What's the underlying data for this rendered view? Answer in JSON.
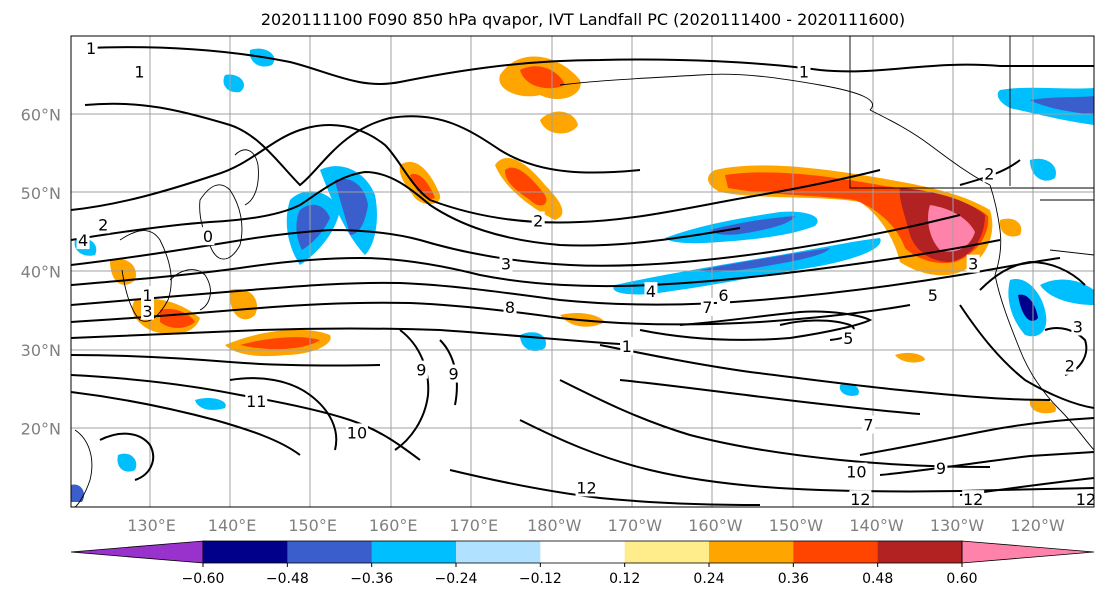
{
  "title": "2020111100 F090 850 hPa qvapor, IVT Landfall PC (2020111400 - 2020111600)",
  "map": {
    "lat_labels": [
      {
        "label": "60°N",
        "lat": 60
      },
      {
        "label": "50°N",
        "lat": 50
      },
      {
        "label": "40°N",
        "lat": 40
      },
      {
        "label": "30°N",
        "lat": 30
      },
      {
        "label": "20°N",
        "lat": 20
      }
    ],
    "lon_labels": [
      {
        "label": "130°E",
        "lon": 130
      },
      {
        "label": "140°E",
        "lon": 140
      },
      {
        "label": "150°E",
        "lon": 150
      },
      {
        "label": "160°E",
        "lon": 160
      },
      {
        "label": "170°E",
        "lon": 170
      },
      {
        "label": "180°W",
        "lon": 180
      },
      {
        "label": "170°W",
        "lon": 190
      },
      {
        "label": "160°W",
        "lon": 200
      },
      {
        "label": "150°W",
        "lon": 210
      },
      {
        "label": "140°W",
        "lon": 220
      },
      {
        "label": "130°W",
        "lon": 230
      },
      {
        "label": "120°W",
        "lon": 240
      }
    ],
    "lon_range": [
      120,
      247
    ],
    "lat_range": [
      10,
      70
    ],
    "grid_color": "#a0a0a0",
    "label_color": "#808080",
    "contour_labels": [
      {
        "text": "1",
        "lon": 122.5,
        "lat": 68.5
      },
      {
        "text": "1",
        "lon": 128.5,
        "lat": 65.5
      },
      {
        "text": "1",
        "lon": 211,
        "lat": 65.5
      },
      {
        "text": "2",
        "lon": 124,
        "lat": 46
      },
      {
        "text": "4",
        "lon": 121.5,
        "lat": 44
      },
      {
        "text": "0",
        "lon": 137,
        "lat": 44.5
      },
      {
        "text": "2",
        "lon": 178,
        "lat": 46.5
      },
      {
        "text": "3",
        "lon": 174,
        "lat": 41
      },
      {
        "text": "4",
        "lon": 192,
        "lat": 37.5
      },
      {
        "text": "8",
        "lon": 174.5,
        "lat": 35.5
      },
      {
        "text": "7",
        "lon": 199,
        "lat": 35.5
      },
      {
        "text": "6",
        "lon": 201,
        "lat": 37
      },
      {
        "text": "5",
        "lon": 216.5,
        "lat": 31.5
      },
      {
        "text": "1",
        "lon": 189,
        "lat": 30.5
      },
      {
        "text": "1",
        "lon": 129.5,
        "lat": 37
      },
      {
        "text": "3",
        "lon": 129.5,
        "lat": 35
      },
      {
        "text": "9",
        "lon": 163.5,
        "lat": 27.5
      },
      {
        "text": "9",
        "lon": 167.5,
        "lat": 27
      },
      {
        "text": "11",
        "lon": 143,
        "lat": 23.5
      },
      {
        "text": "10",
        "lon": 155.5,
        "lat": 19.5
      },
      {
        "text": "7",
        "lon": 219,
        "lat": 20.5
      },
      {
        "text": "10",
        "lon": 217.5,
        "lat": 14.5
      },
      {
        "text": "9",
        "lon": 228,
        "lat": 15
      },
      {
        "text": "12",
        "lon": 218,
        "lat": 11
      },
      {
        "text": "12",
        "lon": 232,
        "lat": 11
      },
      {
        "text": "12",
        "lon": 246,
        "lat": 11
      },
      {
        "text": "12",
        "lon": 184,
        "lat": 12.5
      },
      {
        "text": "3",
        "lon": 245,
        "lat": 33
      },
      {
        "text": "2",
        "lon": 244,
        "lat": 28
      },
      {
        "text": "2",
        "lon": 234,
        "lat": 52.5
      },
      {
        "text": "3",
        "lon": 232,
        "lat": 41
      },
      {
        "text": "5",
        "lon": 227,
        "lat": 37
      }
    ]
  },
  "colorbar": {
    "colors": [
      "#9932cc",
      "#00008b",
      "#3a5fcd",
      "#00bfff",
      "#b0e2ff",
      "#ffffff",
      "#ffec8b",
      "#ffa500",
      "#ff4500",
      "#b22222",
      "#ff82ab"
    ],
    "tick_labels": [
      "−0.60",
      "−0.48",
      "−0.36",
      "−0.24",
      "−0.12",
      "0.12",
      "0.24",
      "0.36",
      "0.48",
      "0.60"
    ],
    "boundaries": [
      -0.6,
      -0.48,
      -0.36,
      -0.24,
      -0.12,
      0.12,
      0.24,
      0.36,
      0.48,
      0.6
    ]
  }
}
